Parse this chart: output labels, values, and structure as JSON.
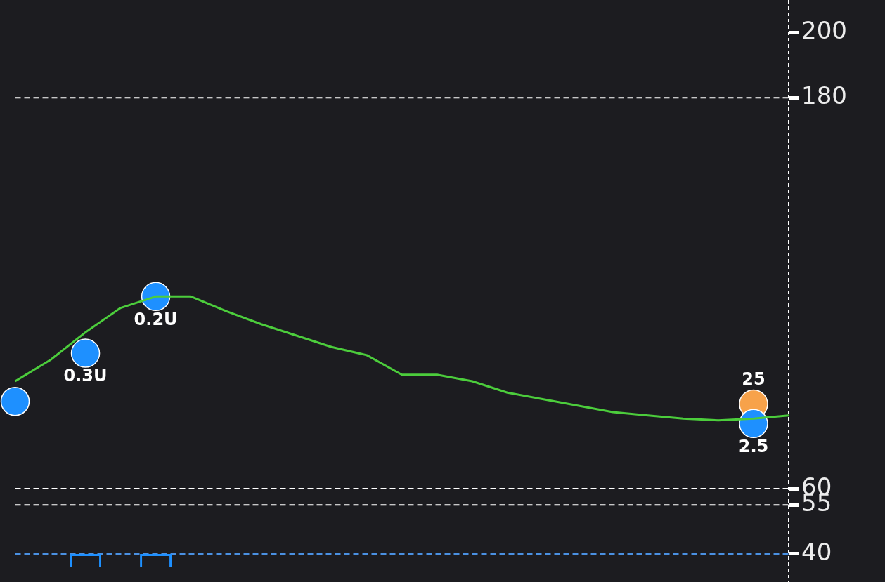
{
  "chart_data": {
    "type": "line",
    "categories": [
      null,
      null,
      null,
      null,
      null,
      null,
      null,
      null,
      null,
      null,
      null,
      null,
      null,
      null,
      null,
      null,
      null,
      null,
      null,
      null,
      null,
      null,
      null
    ],
    "series": [
      {
        "color": "#4ccd3c",
        "values": [
          93,
          99.5,
          108,
          115.5,
          119,
          119,
          114.5,
          110.5,
          107,
          103.5,
          101,
          95,
          95,
          93,
          89.5,
          87.5,
          85.5,
          83.5,
          82.5,
          81.5,
          81,
          81.5,
          82.5
        ]
      },
      {
        "type": "bar",
        "color": "#1e90ff",
        "base": [
          null,
          null,
          36,
          null,
          36,
          null,
          null,
          null,
          null,
          null,
          null,
          null,
          null,
          null,
          null,
          null,
          null,
          null,
          null,
          null,
          null,
          null,
          null
        ],
        "values": [
          null,
          null,
          4,
          null,
          4,
          null,
          null,
          null,
          null,
          null,
          null,
          null,
          null,
          null,
          null,
          null,
          null,
          null,
          null,
          null,
          null,
          null,
          null
        ]
      },
      {
        "type": "scatter",
        "color": "#f7a24a",
        "values": [
          null,
          null,
          null,
          null,
          null,
          null,
          null,
          null,
          null,
          null,
          null,
          null,
          null,
          null,
          null,
          null,
          null,
          null,
          null,
          null,
          null,
          86,
          null
        ]
      },
      {
        "type": "scatter",
        "color": "#1e90ff",
        "values": [
          86.8,
          null,
          101.6,
          null,
          119,
          null,
          null,
          null,
          null,
          null,
          null,
          null,
          null,
          null,
          null,
          null,
          null,
          null,
          null,
          null,
          null,
          80,
          null
        ]
      }
    ],
    "annotations": [
      "0.3U",
      "0.2U",
      "25",
      "2.5"
    ],
    "ylim": [
      36,
      210
    ],
    "yticks": [
      40,
      55,
      60,
      180,
      200
    ],
    "ref_lines": [
      {
        "axis": "y",
        "value": 180,
        "color": "#ffffff",
        "line_style": "dashed"
      },
      {
        "axis": "y",
        "value": 60,
        "color": "#ffffff",
        "line_style": "dashed"
      },
      {
        "axis": "y",
        "value": 55,
        "color": "#ffffff",
        "line_style": "dashed"
      },
      {
        "axis": "y",
        "value": 40,
        "color": "#4a90e2",
        "line_style": "dashed"
      }
    ],
    "grid": false,
    "legend": false
  }
}
